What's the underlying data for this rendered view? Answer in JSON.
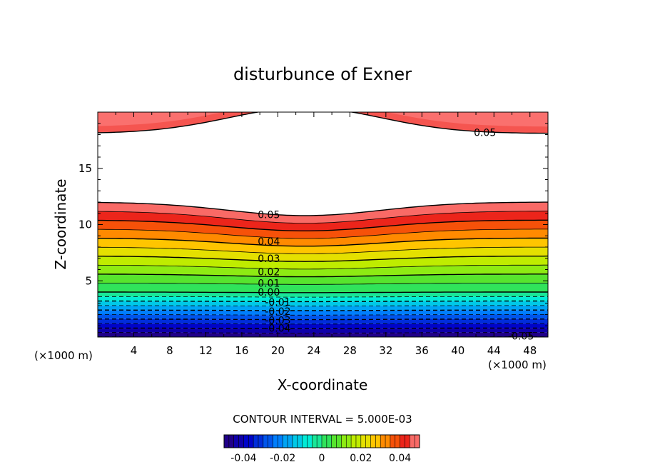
{
  "chart_data": {
    "type": "contour",
    "title": "disturbunce of Exner",
    "xlabel": "X-coordinate",
    "ylabel": "Z-coordinate",
    "x_unit": "(×1000 m)",
    "y_unit": "(×1000 m)",
    "xlim": [
      0,
      50
    ],
    "ylim": [
      0,
      20
    ],
    "x_ticks": [
      4,
      8,
      12,
      16,
      20,
      24,
      28,
      32,
      36,
      40,
      44,
      48
    ],
    "y_ticks": [
      5,
      10,
      15
    ],
    "contour_interval_text": "CONTOUR INTERVAL = 5.000E-03",
    "contour_interval": 0.005,
    "levels": [
      -0.05,
      -0.045,
      -0.04,
      -0.035,
      -0.03,
      -0.025,
      -0.02,
      -0.015,
      -0.01,
      -0.005,
      0.0,
      0.005,
      0.01,
      0.015,
      0.02,
      0.025,
      0.03,
      0.035,
      0.04,
      0.045,
      0.05
    ],
    "contour_labels": [
      {
        "text": "0.05",
        "x": 19,
        "z": 10.9
      },
      {
        "text": "0.04",
        "x": 19,
        "z": 8.5
      },
      {
        "text": "0.03",
        "x": 19,
        "z": 7.0
      },
      {
        "text": "0.02",
        "x": 19,
        "z": 5.8
      },
      {
        "text": "0.01",
        "x": 19,
        "z": 4.8
      },
      {
        "text": "0.00",
        "x": 19,
        "z": 4.0
      },
      {
        "text": "-0.01",
        "x": 20,
        "z": 3.1
      },
      {
        "text": "-0.02",
        "x": 20,
        "z": 2.3
      },
      {
        "text": "-0.03",
        "x": 20,
        "z": 1.5
      },
      {
        "text": "-0.04",
        "x": 20,
        "z": 0.8
      },
      {
        "text": "0.05",
        "x": 43,
        "z": 18.2
      },
      {
        "text": "-0.05",
        "x": 47,
        "z": 0.1
      }
    ],
    "colorbar": {
      "range": [
        -0.05,
        0.05
      ],
      "tick_values": [
        -0.04,
        -0.02,
        0,
        0.02,
        0.04
      ],
      "tick_labels": [
        "-0.04",
        "-0.02",
        "0",
        "0.02",
        "0.04"
      ]
    }
  }
}
